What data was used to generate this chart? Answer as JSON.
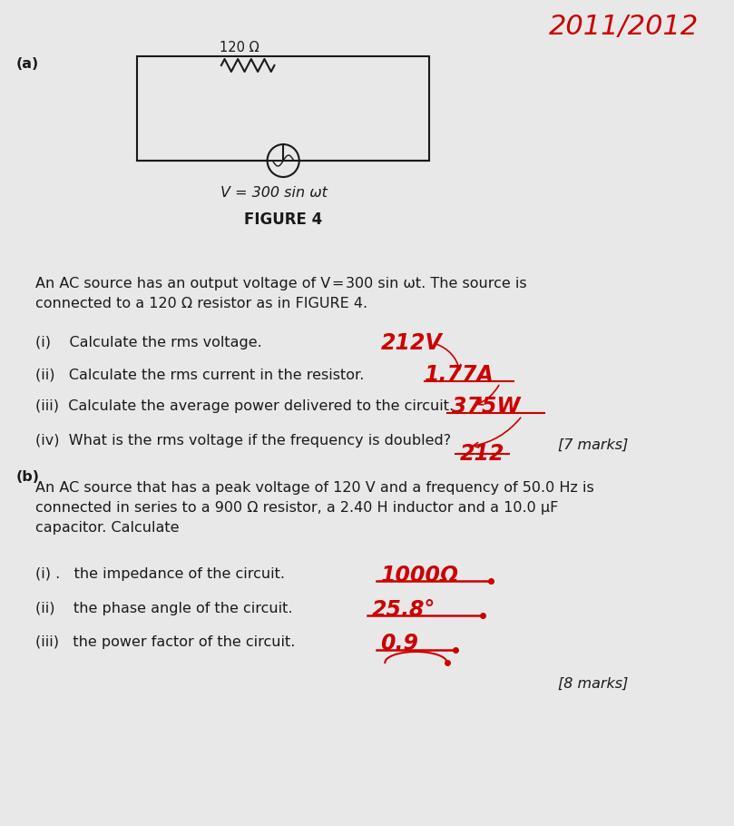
{
  "bg_color": "#e8e8e8",
  "title_red": "2011/2012",
  "part_a_label": "(a)",
  "part_b_label": "(b)",
  "resistor_label": "120 Ω",
  "voltage_label": "V = 300 sin ωt",
  "figure_label": "FIGURE 4",
  "text_a_intro": "An AC source has an output voltage of V = 300 sin ωt. The source is\nconnected to a 120 Ω resistor as in FIGURE 4.",
  "items_a": [
    "(i)    Calculate the rms voltage.",
    "(ii)   Calculate the rms current in the resistor.",
    "(iii)  Calculate the average power delivered to the circuit.",
    "(iv)  What is the rms voltage if the frequency is doubled?"
  ],
  "answers_a": [
    "212V",
    "1.77A",
    "375W",
    "212"
  ],
  "marks_a": "[7 marks]",
  "text_b_intro": "An AC source that has a peak voltage of 120 V and a frequency of 50.0 Hz is\nconnected in series to a 900 Ω resistor, a 2.40 H inductor and a 10.0 μF\ncapacitor. Calculate",
  "items_b": [
    "(i) .   the impedance of the circuit.",
    "(ii)    the phase angle of the circuit.",
    "(iii)   the power factor of the circuit."
  ],
  "answers_b": [
    "1000Ω",
    "25.8°",
    "0.9"
  ],
  "marks_b": "[8 marks]",
  "red_color": "#cc0000",
  "black_color": "#1a1a1a",
  "font_size_body": 11.5,
  "font_size_answer": 16
}
